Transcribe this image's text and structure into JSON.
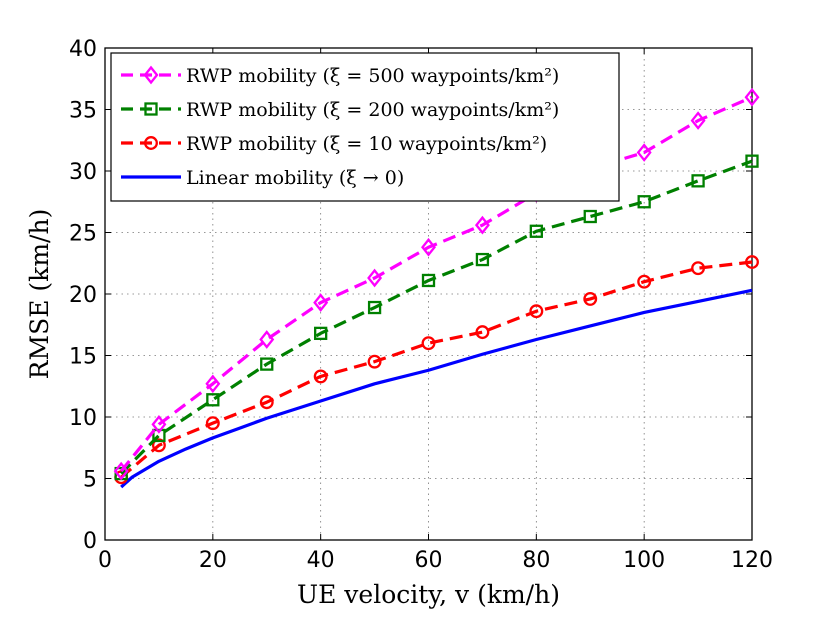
{
  "chart_data": {
    "type": "line",
    "xlabel": "UE velocity, v (km/h)",
    "ylabel": "RMSE (km/h)",
    "xlim": [
      0,
      120
    ],
    "ylim": [
      0,
      40
    ],
    "xticks": [
      0,
      20,
      40,
      60,
      80,
      100,
      120
    ],
    "yticks": [
      0,
      5,
      10,
      15,
      20,
      25,
      30,
      35,
      40
    ],
    "grid": true,
    "legend_position": "top-left",
    "series": [
      {
        "name": "RWP mobility (ξ = 500 waypoints/km²)",
        "color": "#ff00ff",
        "marker": "diamond",
        "linestyle": "dashed",
        "x": [
          3,
          10,
          20,
          30,
          40,
          50,
          60,
          70,
          80,
          90,
          100,
          110,
          120
        ],
        "y": [
          5.6,
          9.4,
          12.7,
          16.3,
          19.3,
          21.3,
          23.8,
          25.6,
          28.2,
          30.2,
          31.5,
          34.1,
          36.0
        ]
      },
      {
        "name": "RWP mobility (ξ = 200 waypoints/km²)",
        "color": "#008000",
        "marker": "square",
        "linestyle": "dashed",
        "x": [
          3,
          10,
          20,
          30,
          40,
          50,
          60,
          70,
          80,
          90,
          100,
          110,
          120
        ],
        "y": [
          5.4,
          8.5,
          11.4,
          14.3,
          16.8,
          18.9,
          21.1,
          22.8,
          25.1,
          26.3,
          27.5,
          29.2,
          30.8
        ]
      },
      {
        "name": "RWP mobility (ξ = 10 waypoints/km²)",
        "color": "#ff0000",
        "marker": "circle",
        "linestyle": "dashed",
        "x": [
          3,
          10,
          20,
          30,
          40,
          50,
          60,
          70,
          80,
          90,
          100,
          110,
          120
        ],
        "y": [
          5.1,
          7.7,
          9.5,
          11.2,
          13.3,
          14.5,
          16.0,
          16.9,
          18.6,
          19.6,
          21.0,
          22.1,
          22.6
        ]
      },
      {
        "name": "Linear mobility (ξ → 0)",
        "color": "#0000ff",
        "marker": "none",
        "linestyle": "solid",
        "x": [
          3,
          5,
          10,
          15,
          20,
          25,
          30,
          40,
          50,
          60,
          70,
          80,
          90,
          100,
          110,
          120
        ],
        "y": [
          4.3,
          5.1,
          6.4,
          7.4,
          8.3,
          9.1,
          9.9,
          11.3,
          12.7,
          13.8,
          15.1,
          16.3,
          17.4,
          18.5,
          19.4,
          20.3
        ]
      }
    ]
  }
}
